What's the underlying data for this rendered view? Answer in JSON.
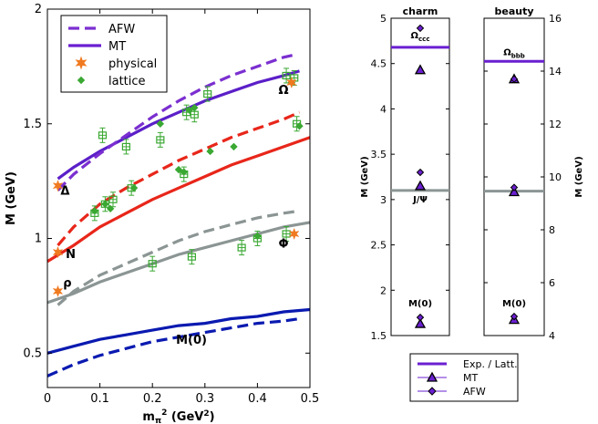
{
  "chart_data": [
    {
      "type": "line",
      "id": "main",
      "xlabel": "m",
      "xlabel_sub": "π",
      "xlabel_sup": "2",
      "xlabel_unit": " (GeV",
      "xlabel_unit_sup": "2",
      "xlabel_close": ")",
      "ylabel": "M (GeV)",
      "xlim": [
        0,
        0.5
      ],
      "ylim": [
        0.35,
        2.0
      ],
      "xticks": [
        0,
        0.1,
        0.2,
        0.3,
        0.4,
        0.5
      ],
      "xtick_labels": [
        "0",
        "0.1",
        "0.2",
        "0.3",
        "0.4",
        "0.5"
      ],
      "yticks": [
        0.5,
        1.0,
        1.5,
        2.0
      ],
      "ytick_labels": [
        "0.5",
        "1",
        "1.5",
        "2"
      ],
      "legend": [
        {
          "label": "AFW",
          "kind": "dash",
          "color": "#7b2fd0"
        },
        {
          "label": "MT",
          "kind": "solid",
          "color": "#6a1fd0"
        },
        {
          "label": "physical",
          "kind": "star",
          "color": "#f07a20"
        },
        {
          "label": "lattice",
          "kind": "diamond",
          "color": "#3aa832"
        }
      ],
      "series": [
        {
          "name": "Delta MT",
          "style": "solid",
          "color": "#5b1fc8",
          "x": [
            0.02,
            0.05,
            0.1,
            0.15,
            0.2,
            0.25,
            0.3,
            0.35,
            0.4,
            0.45,
            0.48
          ],
          "y": [
            1.26,
            1.31,
            1.38,
            1.44,
            1.5,
            1.55,
            1.6,
            1.64,
            1.68,
            1.71,
            1.73
          ]
        },
        {
          "name": "Delta AFW",
          "style": "dash",
          "color": "#7b2fd0",
          "x": [
            0.02,
            0.05,
            0.1,
            0.15,
            0.2,
            0.25,
            0.3,
            0.35,
            0.4,
            0.45,
            0.47
          ],
          "y": [
            1.21,
            1.28,
            1.37,
            1.45,
            1.53,
            1.6,
            1.66,
            1.71,
            1.75,
            1.79,
            1.8
          ]
        },
        {
          "name": "N MT",
          "style": "solid",
          "color": "#e8261a",
          "x": [
            0.0,
            0.05,
            0.1,
            0.15,
            0.2,
            0.25,
            0.3,
            0.35,
            0.4,
            0.45,
            0.5
          ],
          "y": [
            0.9,
            0.97,
            1.05,
            1.11,
            1.17,
            1.22,
            1.27,
            1.32,
            1.36,
            1.4,
            1.44
          ]
        },
        {
          "name": "N AFW",
          "style": "dash",
          "color": "#e8261a",
          "x": [
            0.02,
            0.05,
            0.1,
            0.15,
            0.2,
            0.25,
            0.3,
            0.35,
            0.4,
            0.45,
            0.48
          ],
          "y": [
            0.97,
            1.05,
            1.15,
            1.22,
            1.28,
            1.34,
            1.39,
            1.44,
            1.48,
            1.52,
            1.55
          ]
        },
        {
          "name": "rho MT",
          "style": "solid",
          "color": "#8b9594",
          "x": [
            0.0,
            0.05,
            0.1,
            0.15,
            0.2,
            0.25,
            0.3,
            0.35,
            0.4,
            0.45,
            0.5
          ],
          "y": [
            0.72,
            0.76,
            0.81,
            0.85,
            0.89,
            0.93,
            0.96,
            0.99,
            1.02,
            1.05,
            1.07
          ]
        },
        {
          "name": "rho AFW",
          "style": "dash",
          "color": "#8b9594",
          "x": [
            0.02,
            0.05,
            0.1,
            0.15,
            0.2,
            0.25,
            0.3,
            0.35,
            0.4,
            0.45,
            0.48
          ],
          "y": [
            0.71,
            0.77,
            0.84,
            0.89,
            0.94,
            0.99,
            1.03,
            1.06,
            1.09,
            1.11,
            1.12
          ]
        },
        {
          "name": "M(0) MT",
          "style": "solid",
          "color": "#0a1ab0",
          "x": [
            0.0,
            0.05,
            0.1,
            0.15,
            0.2,
            0.25,
            0.3,
            0.35,
            0.4,
            0.45,
            0.5
          ],
          "y": [
            0.5,
            0.53,
            0.56,
            0.58,
            0.6,
            0.62,
            0.63,
            0.65,
            0.66,
            0.68,
            0.69
          ]
        },
        {
          "name": "M(0) AFW",
          "style": "dash",
          "color": "#0a1ab0",
          "x": [
            0.0,
            0.05,
            0.1,
            0.15,
            0.2,
            0.25,
            0.3,
            0.35,
            0.4,
            0.45,
            0.48
          ],
          "y": [
            0.4,
            0.45,
            0.49,
            0.52,
            0.55,
            0.57,
            0.59,
            0.61,
            0.63,
            0.64,
            0.65
          ]
        }
      ],
      "physical": [
        {
          "x": 0.02,
          "y": 1.23
        },
        {
          "x": 0.02,
          "y": 0.94
        },
        {
          "x": 0.02,
          "y": 0.77
        },
        {
          "x": 0.47,
          "y": 1.02
        },
        {
          "x": 0.465,
          "y": 1.68
        }
      ],
      "lattice_boxes": [
        {
          "x": 0.09,
          "y": 1.11
        },
        {
          "x": 0.105,
          "y": 1.45
        },
        {
          "x": 0.11,
          "y": 1.15
        },
        {
          "x": 0.125,
          "y": 1.17
        },
        {
          "x": 0.15,
          "y": 1.4
        },
        {
          "x": 0.16,
          "y": 1.22
        },
        {
          "x": 0.2,
          "y": 0.89
        },
        {
          "x": 0.215,
          "y": 1.43
        },
        {
          "x": 0.26,
          "y": 1.28
        },
        {
          "x": 0.265,
          "y": 1.55
        },
        {
          "x": 0.275,
          "y": 0.92
        },
        {
          "x": 0.28,
          "y": 1.54
        },
        {
          "x": 0.305,
          "y": 1.63
        },
        {
          "x": 0.37,
          "y": 0.96
        },
        {
          "x": 0.4,
          "y": 1.0
        },
        {
          "x": 0.455,
          "y": 1.02
        },
        {
          "x": 0.455,
          "y": 1.71
        },
        {
          "x": 0.475,
          "y": 1.5
        },
        {
          "x": 0.47,
          "y": 1.7
        }
      ],
      "lattice_diamonds": [
        {
          "x": 0.09,
          "y": 1.12
        },
        {
          "x": 0.11,
          "y": 1.15
        },
        {
          "x": 0.12,
          "y": 1.13
        },
        {
          "x": 0.165,
          "y": 1.22
        },
        {
          "x": 0.215,
          "y": 1.5
        },
        {
          "x": 0.25,
          "y": 1.3
        },
        {
          "x": 0.26,
          "y": 1.29
        },
        {
          "x": 0.27,
          "y": 1.56
        },
        {
          "x": 0.31,
          "y": 1.38
        },
        {
          "x": 0.355,
          "y": 1.4
        },
        {
          "x": 0.4,
          "y": 1.01
        },
        {
          "x": 0.465,
          "y": 1.68
        },
        {
          "x": 0.48,
          "y": 1.49
        },
        {
          "x": 0.28,
          "y": 1.57
        }
      ],
      "annotations": [
        {
          "text": "Δ",
          "x": 0.025,
          "y": 1.19
        },
        {
          "text": "N",
          "x": 0.035,
          "y": 0.915
        },
        {
          "text": "ρ",
          "x": 0.03,
          "y": 0.79
        },
        {
          "text": "Ω",
          "x": 0.44,
          "y": 1.63
        },
        {
          "text": "Φ",
          "x": 0.44,
          "y": 0.96
        },
        {
          "text": "M(0)",
          "x": 0.245,
          "y": 0.54
        }
      ]
    },
    {
      "type": "scatter",
      "id": "charm",
      "title": "charm",
      "ylabel": "M (GeV)",
      "ylim": [
        1.5,
        5.0
      ],
      "yticks": [
        1.5,
        2,
        2.5,
        3,
        3.5,
        4,
        4.5,
        5
      ],
      "ytick_labels": [
        "1.5",
        "2",
        "2.5",
        "3",
        "3.5",
        "4",
        "4.5",
        "5"
      ],
      "exp_lines": [
        {
          "y": 4.68,
          "color": "#6a1fd0"
        },
        {
          "y": 3.1,
          "color": "#8b9594"
        }
      ],
      "mt_points": [
        4.43,
        3.15,
        1.63
      ],
      "afw_points": [
        4.89,
        3.3,
        1.7
      ],
      "labels": [
        {
          "text": "Ω",
          "sub": "ccc",
          "y": 4.78
        },
        {
          "text": "J/Ψ",
          "sub": "",
          "y": 2.97
        },
        {
          "text": "M(0)",
          "sub": "",
          "y": 1.82
        }
      ]
    },
    {
      "type": "scatter",
      "id": "beauty",
      "title": "beauty",
      "ylabel": "M (GeV)",
      "ylim": [
        4,
        16
      ],
      "yticks": [
        4,
        6,
        8,
        10,
        12,
        14,
        16
      ],
      "ytick_labels": [
        "4",
        "6",
        "8",
        "10",
        "12",
        "14",
        "16"
      ],
      "exp_lines": [
        {
          "y": 14.37,
          "color": "#6a1fd0"
        },
        {
          "y": 9.46,
          "color": "#8b9594"
        }
      ],
      "mt_points": [
        13.7,
        9.43,
        4.6
      ],
      "afw_points": [
        13.7,
        9.6,
        4.72
      ],
      "labels": [
        {
          "text": "Ω",
          "sub": "bbb",
          "y": 14.6
        },
        {
          "text": "M(0)",
          "sub": "",
          "y": 5.1
        }
      ]
    }
  ],
  "legend2": [
    {
      "label": "Exp. / Latt.",
      "kind": "line",
      "color": "#6a1fd0"
    },
    {
      "label": "MT",
      "kind": "triangle",
      "color": "#6a1fd0"
    },
    {
      "label": "AFW",
      "kind": "diamond",
      "color": "#6a1fd0"
    }
  ]
}
